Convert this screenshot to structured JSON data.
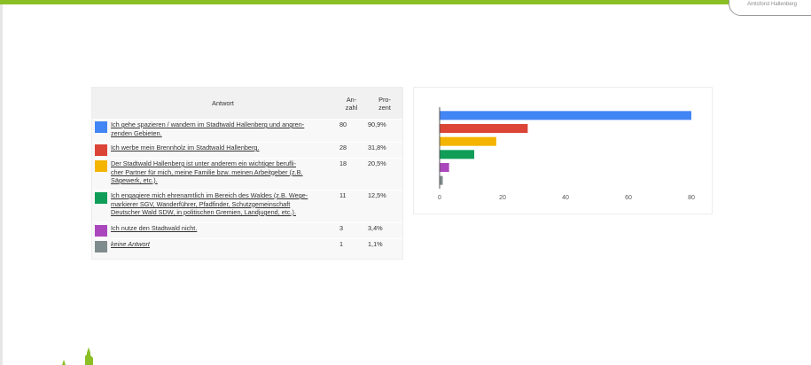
{
  "badge": {
    "text": "Amtsforst Hallenberg"
  },
  "table": {
    "headers": {
      "answer": "Antwort",
      "count_line1": "An-",
      "count_line2": "zahl",
      "pct_line1": "Pro-",
      "pct_line2": "zent"
    },
    "rows": [
      {
        "color": "#4285f4",
        "line1": "Ich gehe spazieren / wandern im Stadtwald Hallenberg und angren-",
        "line2": "zenden Gebieten.",
        "line3": "",
        "count": "80",
        "percent": "90,9%"
      },
      {
        "color": "#db4437",
        "line1": "Ich werbe mein Brennholz im Stadtwald Hallenberg.",
        "line2": "",
        "line3": "",
        "count": "28",
        "percent": "31,8%"
      },
      {
        "color": "#f4b400",
        "line1": "Der Stadtwald Hallenberg ist unter anderem ein wichtiger berufli-",
        "line2": "cher Partner für mich, meine Familie bzw. meinen Arbeitgeber (z.B.",
        "line3": "Sägewerk, etc.).",
        "count": "18",
        "percent": "20,5%"
      },
      {
        "color": "#0f9d58",
        "line1": "Ich engagiere mich ehrenamtlich im Bereich des Waldes (z.B. Wege-",
        "line2": "markierer SGV, Wanderführer, Pfadfinder, Schutzgemeinschaft",
        "line3": "Deutscher Wald SDW, in politischen Gremien, Landjugend, etc.).",
        "count": "11",
        "percent": "12,5%"
      },
      {
        "color": "#ab47bc",
        "line1": "Ich nutze den Stadtwald nicht.",
        "line2": "",
        "line3": "",
        "count": "3",
        "percent": "3,4%"
      },
      {
        "color": "#7f8c8d",
        "line1": "keine Antwort",
        "line2": "",
        "line3": "",
        "count": "1",
        "percent": "1,1%"
      }
    ]
  },
  "chart_data": {
    "type": "bar",
    "orientation": "horizontal",
    "categories": [
      "Ich gehe spazieren / wandern im Stadtwald Hallenberg und angrenzenden Gebieten.",
      "Ich werbe mein Brennholz im Stadtwald Hallenberg.",
      "Der Stadtwald Hallenberg ist unter anderem ein wichtiger beruflicher Partner für mich, meine Familie bzw. meinen Arbeitgeber (z.B. Sägewerk, etc.).",
      "Ich engagiere mich ehrenamtlich im Bereich des Waldes (z.B. Wegemarkierer SGV, Wanderführer, Pfadfinder, Schutzgemeinschaft Deutscher Wald SDW, in politischen Gremien, Landjugend, etc.).",
      "Ich nutze den Stadtwald nicht.",
      "keine Antwort"
    ],
    "values": [
      80,
      28,
      18,
      11,
      3,
      1
    ],
    "colors": [
      "#4285f4",
      "#db4437",
      "#f4b400",
      "#0f9d58",
      "#ab47bc",
      "#7f8c8d"
    ],
    "xlim": [
      0,
      80
    ],
    "xticks": [
      "0",
      "20",
      "40",
      "60",
      "80"
    ],
    "title": "",
    "xlabel": "",
    "ylabel": "",
    "grid": false,
    "legend": "none"
  }
}
